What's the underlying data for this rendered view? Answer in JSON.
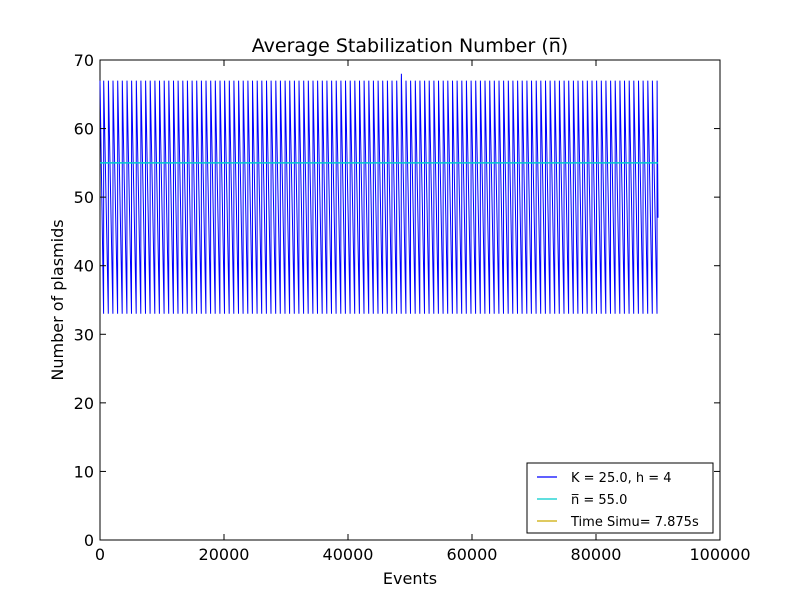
{
  "chart_data": {
    "type": "line",
    "title": "Average Stabilization Number (n̅)",
    "xlabel": "Events",
    "ylabel": "Number of plasmids",
    "xlim": [
      0,
      100000
    ],
    "ylim": [
      0,
      70
    ],
    "xticks": [
      0,
      20000,
      40000,
      60000,
      80000,
      100000
    ],
    "yticks": [
      0,
      10,
      20,
      30,
      40,
      50,
      60,
      70
    ],
    "xtick_labels": [
      "0",
      "20000",
      "40000",
      "60000",
      "80000",
      "100000"
    ],
    "ytick_labels": [
      "0",
      "10",
      "20",
      "30",
      "40",
      "50",
      "60",
      "70"
    ],
    "grid": false,
    "legend_position": "lower-right",
    "series": [
      {
        "name": "K = 25.0, h = 4",
        "color": "#0000ff",
        "pattern": "sawtooth",
        "x_range": [
          0,
          90000
        ],
        "y_min": 33,
        "y_max": 67,
        "cycles": 120,
        "end_value": 47,
        "spike": {
          "x": 48000,
          "y": 68
        }
      },
      {
        "name": "n̅ = 55.0",
        "color": "#00cccc",
        "x": [
          0,
          90000
        ],
        "y": [
          55,
          55
        ]
      },
      {
        "name": "Time Simu= 7.875s",
        "color": "#ccaa00",
        "x": [],
        "y": []
      }
    ]
  }
}
